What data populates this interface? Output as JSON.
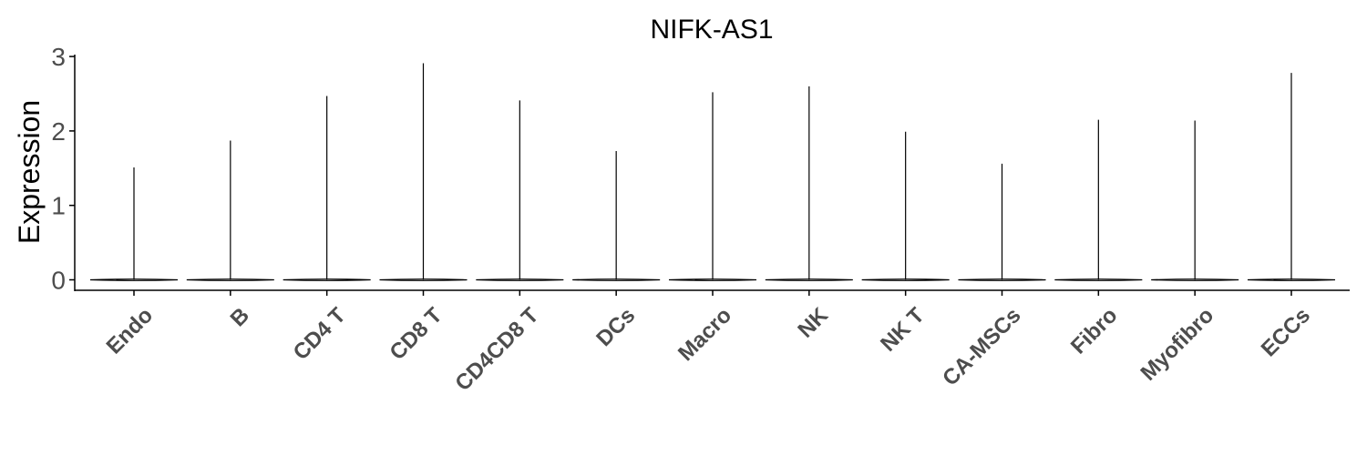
{
  "chart_data": {
    "type": "violin",
    "title": "NIFK-AS1",
    "xlabel": "",
    "ylabel": "Expression",
    "ylim": [
      -0.15,
      3.05
    ],
    "yticks": [
      0,
      1,
      2,
      3
    ],
    "categories": [
      "Endo",
      "B",
      "CD4 T",
      "CD8 T",
      "CD4CD8 T",
      "DCs",
      "Macro",
      "NK",
      "NK T",
      "CA-MSCs",
      "Fibro",
      "Myofibro",
      "ECCs"
    ],
    "max_values": [
      1.51,
      1.87,
      2.47,
      2.91,
      2.41,
      1.73,
      2.52,
      2.6,
      1.99,
      1.56,
      2.15,
      2.14,
      2.78
    ],
    "median_values": [
      0,
      0,
      0,
      0,
      0,
      0,
      0,
      0,
      0,
      0,
      0,
      0,
      0
    ],
    "grid": false,
    "legend": "none",
    "colors": {
      "violin_stroke": "#000000",
      "axis": "#000000",
      "tick_text": "#4d4d4d"
    }
  }
}
